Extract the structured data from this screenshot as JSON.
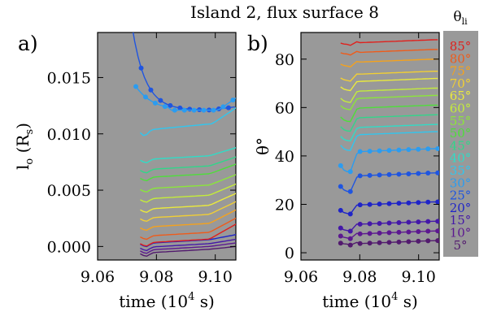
{
  "figure_title": "Island 2, flux surface 8",
  "chart_data": [
    {
      "panel_label": "a)",
      "type": "line",
      "xlabel": "time (10",
      "xlabel_sup": "4",
      "xlabel_tail": " s)",
      "ylabel": "l",
      "ylabel_sub": "o",
      "ylabel_tail": " (R",
      "ylabel_sub2": "s",
      "ylabel_end": ")",
      "xlim": [
        9.06,
        9.107
      ],
      "ylim": [
        -0.0012,
        0.019
      ],
      "xticks": [
        "9.06",
        "9.08",
        "9.10"
      ],
      "xtick_values": [
        9.06,
        9.08,
        9.1
      ],
      "yticks": [
        "0.000",
        "0.005",
        "0.010",
        "0.015"
      ],
      "ytick_values": [
        0.0,
        0.005,
        0.01,
        0.015
      ],
      "background": "#999999",
      "markers": {
        "series": [
          "25°",
          "30°"
        ]
      }
    },
    {
      "panel_label": "b)",
      "type": "line",
      "xlabel": "time (10",
      "xlabel_sup": "4",
      "xlabel_tail": " s)",
      "ylabel": "θ°",
      "xlim": [
        9.06,
        9.107
      ],
      "ylim": [
        -3,
        91
      ],
      "xticks": [
        "9.06",
        "9.08",
        "9.10"
      ],
      "xtick_values": [
        9.06,
        9.08,
        9.1
      ],
      "yticks": [
        "0",
        "20",
        "40",
        "60",
        "80"
      ],
      "ytick_values": [
        0,
        20,
        40,
        60,
        80
      ],
      "background": "#999999",
      "markers": {
        "series": [
          "5°",
          "10°",
          "15°",
          "20°",
          "25°",
          "30°"
        ]
      }
    }
  ],
  "legend": {
    "title": "θ",
    "title_sub": "li",
    "background": "#999999",
    "items": [
      {
        "label": "85°",
        "color": "#e0201c"
      },
      {
        "label": "80°",
        "color": "#ef5b1a"
      },
      {
        "label": "75°",
        "color": "#f5a21c"
      },
      {
        "label": "70°",
        "color": "#f2cf33"
      },
      {
        "label": "65°",
        "color": "#eaea3c"
      },
      {
        "label": "60°",
        "color": "#c4ec3a"
      },
      {
        "label": "55°",
        "color": "#8be63a"
      },
      {
        "label": "50°",
        "color": "#4ede3a"
      },
      {
        "label": "45°",
        "color": "#31d68a"
      },
      {
        "label": "40°",
        "color": "#30dcc6"
      },
      {
        "label": "35°",
        "color": "#30c6ef"
      },
      {
        "label": "30°",
        "color": "#2b9cf0"
      },
      {
        "label": "25°",
        "color": "#1f55e0"
      },
      {
        "label": "20°",
        "color": "#1f24c8"
      },
      {
        "label": "15°",
        "color": "#4418a8"
      },
      {
        "label": "10°",
        "color": "#5c1890"
      },
      {
        "label": "5°",
        "color": "#521a6e"
      }
    ]
  }
}
